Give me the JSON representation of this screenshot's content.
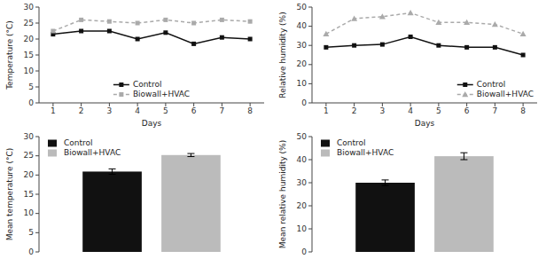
{
  "chart_data": [
    {
      "type": "line",
      "x": [
        1,
        2,
        3,
        4,
        5,
        6,
        7,
        8
      ],
      "xlabel": "Days",
      "ylabel": "Temperature (°C)",
      "xlim": [
        0.5,
        8.5
      ],
      "xticks": [
        1,
        2,
        3,
        4,
        5,
        6,
        7,
        8
      ],
      "ylim": [
        0,
        30
      ],
      "yticks": [
        0,
        5,
        10,
        15,
        20,
        25,
        30
      ],
      "grid": false,
      "legend": "lower center",
      "series": [
        {
          "name": "Control",
          "color": "#111111",
          "marker": "square",
          "line_style": "solid",
          "values": [
            21.5,
            22.5,
            22.5,
            20.0,
            22.0,
            18.5,
            20.5,
            20.0
          ]
        },
        {
          "name": "Biowall+HVAC",
          "color": "#aaaaaa",
          "marker": "square",
          "line_style": "dashed",
          "values": [
            22.5,
            26.0,
            25.5,
            25.0,
            26.0,
            25.0,
            26.0,
            25.5
          ]
        }
      ]
    },
    {
      "type": "line",
      "x": [
        1,
        2,
        3,
        4,
        5,
        6,
        7,
        8
      ],
      "xlabel": "Days",
      "ylabel": "Relative humidity (%)",
      "xlim": [
        0.5,
        8.5
      ],
      "xticks": [
        1,
        2,
        3,
        4,
        5,
        6,
        7,
        8
      ],
      "ylim": [
        0,
        50
      ],
      "yticks": [
        0,
        10,
        20,
        30,
        40,
        50
      ],
      "grid": false,
      "legend": "lower right",
      "series": [
        {
          "name": "Control",
          "color": "#111111",
          "marker": "square",
          "line_style": "solid",
          "values": [
            29.0,
            30.0,
            30.5,
            34.5,
            30.0,
            29.0,
            29.0,
            25.0
          ]
        },
        {
          "name": "Biowall+HVAC",
          "color": "#aaaaaa",
          "marker": "triangle",
          "line_style": "dashed",
          "values": [
            36.0,
            44.0,
            45.0,
            47.0,
            42.0,
            42.0,
            41.0,
            36.0
          ]
        }
      ]
    },
    {
      "type": "bar",
      "categories": [
        null
      ],
      "ylabel": "Mean temperature (°C)",
      "ylim": [
        0,
        30
      ],
      "yticks": [
        0,
        5,
        10,
        15,
        20,
        25,
        30
      ],
      "grid": false,
      "legend": "upper left",
      "tick_labels": "y",
      "series": [
        {
          "name": "Control",
          "color": "#111111",
          "values": [
            20.9
          ],
          "errors": [
            0.7
          ]
        },
        {
          "name": "Biowall+HVAC",
          "color": "#bbbbbb",
          "values": [
            25.2
          ],
          "errors": [
            0.4
          ]
        }
      ]
    },
    {
      "type": "bar",
      "categories": [
        null
      ],
      "ylabel": "Mean relative humidity (%)",
      "ylim": [
        0,
        50
      ],
      "yticks": [
        0,
        10,
        20,
        30,
        40,
        50
      ],
      "grid": false,
      "legend": "upper left",
      "tick_labels": "y",
      "series": [
        {
          "name": "Control",
          "color": "#111111",
          "values": [
            30.0
          ],
          "errors": [
            1.2
          ]
        },
        {
          "name": "Biowall+HVAC",
          "color": "#bbbbbb",
          "values": [
            41.5
          ],
          "errors": [
            1.5
          ]
        }
      ]
    }
  ]
}
